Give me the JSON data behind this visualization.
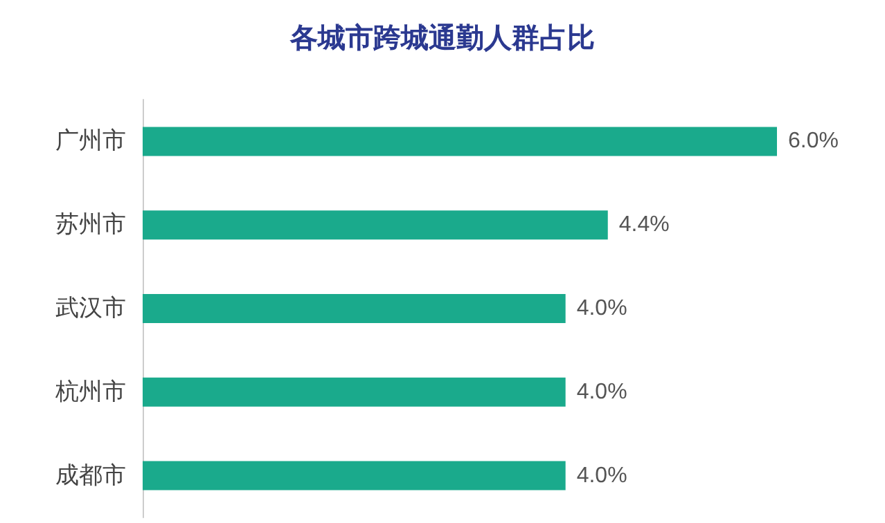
{
  "chart_data": {
    "type": "bar",
    "orientation": "horizontal",
    "title": "各城市跨城通勤人群占比",
    "categories": [
      "广州市",
      "苏州市",
      "武汉市",
      "杭州市",
      "成都市"
    ],
    "values": [
      6.0,
      4.4,
      4.0,
      4.0,
      4.0
    ],
    "value_labels": [
      "6.0%",
      "4.4%",
      "4.0%",
      "4.0%",
      "4.0%"
    ],
    "color": "#1aaa8c",
    "grid": false
  }
}
